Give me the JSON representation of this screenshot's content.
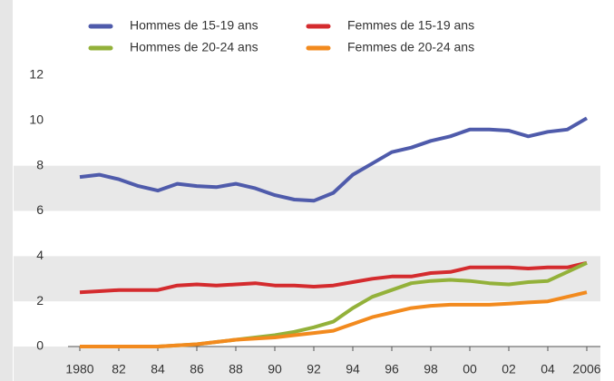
{
  "chart_data": {
    "type": "line",
    "x": [
      1980,
      1981,
      1982,
      1983,
      1984,
      1985,
      1986,
      1987,
      1988,
      1989,
      1990,
      1991,
      1992,
      1993,
      1994,
      1995,
      1996,
      1997,
      1998,
      1999,
      2000,
      2001,
      2002,
      2003,
      2004,
      2005,
      2006
    ],
    "xlim": [
      1980,
      2006
    ],
    "xticks": [
      1980,
      {
        "value": 1982,
        "label": "82"
      },
      {
        "value": 1984,
        "label": "84"
      },
      {
        "value": 1986,
        "label": "86"
      },
      {
        "value": 1988,
        "label": "88"
      },
      {
        "value": 1990,
        "label": "90"
      },
      {
        "value": 1992,
        "label": "92"
      },
      {
        "value": 1994,
        "label": "94"
      },
      {
        "value": 1996,
        "label": "96"
      },
      {
        "value": 1998,
        "label": "98"
      },
      {
        "value": 2000,
        "label": "00"
      },
      {
        "value": 2002,
        "label": "02"
      },
      {
        "value": 2004,
        "label": "04"
      },
      2006
    ],
    "ylim": [
      0,
      12
    ],
    "yticks": [
      0,
      2,
      4,
      6,
      8,
      10,
      12
    ],
    "bands": true,
    "series": [
      {
        "name": "Hommes de 15-19 ans",
        "color": "#4f5bab",
        "values": [
          7.5,
          7.6,
          7.4,
          7.1,
          6.9,
          7.2,
          7.1,
          7.05,
          7.2,
          7.0,
          6.7,
          6.5,
          6.45,
          6.8,
          7.6,
          8.1,
          8.6,
          8.8,
          9.1,
          9.3,
          9.6,
          9.6,
          9.55,
          9.3,
          9.5,
          9.6,
          10.1
        ]
      },
      {
        "name": "Femmes de 15-19 ans",
        "color": "#d42b2e",
        "values": [
          2.4,
          2.45,
          2.5,
          2.5,
          2.5,
          2.7,
          2.75,
          2.7,
          2.75,
          2.8,
          2.7,
          2.7,
          2.65,
          2.7,
          2.85,
          3.0,
          3.1,
          3.1,
          3.25,
          3.3,
          3.5,
          3.5,
          3.5,
          3.45,
          3.5,
          3.5,
          3.7
        ]
      },
      {
        "name": "Hommes de 20-24 ans",
        "color": "#93b13a",
        "values": [
          0,
          0,
          0,
          0,
          0,
          0.05,
          0.1,
          0.2,
          0.3,
          0.4,
          0.5,
          0.65,
          0.85,
          1.1,
          1.7,
          2.2,
          2.5,
          2.8,
          2.9,
          2.95,
          2.9,
          2.8,
          2.75,
          2.85,
          2.9,
          3.3,
          3.7
        ]
      },
      {
        "name": "Femmes de 20-24 ans",
        "color": "#f28a1e",
        "values": [
          0,
          0,
          0,
          0,
          0,
          0.05,
          0.1,
          0.2,
          0.3,
          0.35,
          0.4,
          0.5,
          0.6,
          0.7,
          1.0,
          1.3,
          1.5,
          1.7,
          1.8,
          1.85,
          1.85,
          1.85,
          1.9,
          1.95,
          2.0,
          2.2,
          2.4
        ]
      }
    ]
  }
}
